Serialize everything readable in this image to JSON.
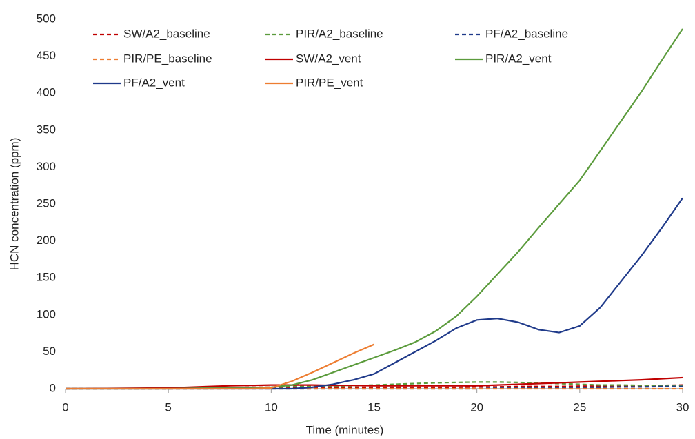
{
  "chart_data": {
    "type": "line",
    "xlabel": "Time (minutes)",
    "ylabel": "HCN concentration (ppm)",
    "x": [
      0,
      1,
      2,
      3,
      4,
      5,
      6,
      7,
      8,
      9,
      10,
      11,
      12,
      13,
      14,
      15,
      16,
      17,
      18,
      19,
      20,
      21,
      22,
      23,
      24,
      25,
      26,
      27,
      28,
      29,
      30
    ],
    "xlim": [
      0,
      30
    ],
    "xticks": [
      0,
      5,
      10,
      15,
      20,
      25,
      30
    ],
    "ylim": [
      0,
      500
    ],
    "yticks": [
      0,
      50,
      100,
      150,
      200,
      250,
      300,
      350,
      400,
      450,
      500
    ],
    "grid": false,
    "legend": "top",
    "series": [
      {
        "name": "SW/A2_baseline",
        "color": "#c00000",
        "line_style": "dashed",
        "values": [
          0,
          0,
          0,
          0,
          0,
          0,
          0.5,
          1,
          1.5,
          2,
          2,
          2,
          2,
          2,
          2,
          2,
          2,
          2,
          2,
          2,
          2.5,
          2.5,
          3,
          3,
          3,
          3.5,
          3.5,
          4,
          4,
          4.5,
          5
        ]
      },
      {
        "name": "PIR/A2_baseline",
        "color": "#5b9b3c",
        "line_style": "dashed",
        "values": [
          0,
          0,
          0,
          0,
          0,
          0,
          0,
          0,
          0.5,
          1,
          2,
          3,
          3,
          3.5,
          4,
          5,
          6,
          7,
          8,
          8.5,
          9,
          9,
          8.5,
          8,
          7,
          6,
          5,
          5,
          4.5,
          4.5,
          4.5
        ]
      },
      {
        "name": "PF/A2_baseline",
        "color": "#1f3a8a",
        "line_style": "dashed",
        "values": [
          0,
          0,
          0,
          0,
          0,
          0,
          0,
          0,
          0,
          0,
          0,
          0,
          0,
          0,
          0,
          0,
          0,
          0,
          0,
          0,
          0,
          1,
          1,
          1.5,
          1.5,
          2,
          2,
          2.5,
          2.5,
          3,
          3
        ]
      },
      {
        "name": "PIR/PE_baseline",
        "color": "#ed7d31",
        "line_style": "dashed",
        "values": [
          0,
          0,
          0,
          0,
          0,
          0,
          0,
          0,
          0,
          0,
          0,
          0,
          0,
          0,
          0,
          0,
          0,
          0,
          0,
          0,
          0,
          0,
          0,
          0,
          0,
          0,
          0,
          0,
          0,
          0,
          0
        ]
      },
      {
        "name": "SW/A2_vent",
        "color": "#c00000",
        "line_style": "solid",
        "values": [
          0,
          0.2,
          0.4,
          0.6,
          0.8,
          1,
          2,
          3,
          4,
          4.5,
          5,
          5,
          5,
          4.5,
          4.5,
          4,
          4,
          4,
          4,
          4,
          4,
          5,
          6,
          7,
          8,
          9,
          10,
          11,
          12,
          13.5,
          15
        ]
      },
      {
        "name": "PIR/A2_vent",
        "color": "#5b9b3c",
        "line_style": "solid",
        "values": [
          0,
          0,
          0,
          0,
          0,
          0,
          0.5,
          1,
          1,
          1.5,
          2,
          5,
          12,
          22,
          32,
          42,
          52,
          63,
          78,
          98,
          125,
          155,
          185,
          218,
          250,
          282,
          322,
          362,
          402,
          445,
          487
        ]
      },
      {
        "name": "PF/A2_vent",
        "color": "#1f3a8a",
        "line_style": "solid",
        "values": [
          0,
          0,
          0,
          0,
          0,
          0,
          0,
          0,
          0,
          0,
          0,
          0,
          2,
          6,
          12,
          20,
          35,
          50,
          65,
          82,
          93,
          95,
          90,
          80,
          76,
          85,
          110,
          145,
          180,
          218,
          258
        ]
      },
      {
        "name": "PIR/PE_vent",
        "color": "#ed7d31",
        "line_style": "solid",
        "values": [
          0,
          0,
          0,
          0,
          0,
          0,
          0,
          0,
          0,
          0,
          1,
          10,
          22,
          35,
          48,
          60,
          null,
          null,
          null,
          null,
          null,
          null,
          null,
          null,
          null,
          null,
          null,
          null,
          null,
          null,
          null
        ]
      }
    ]
  }
}
